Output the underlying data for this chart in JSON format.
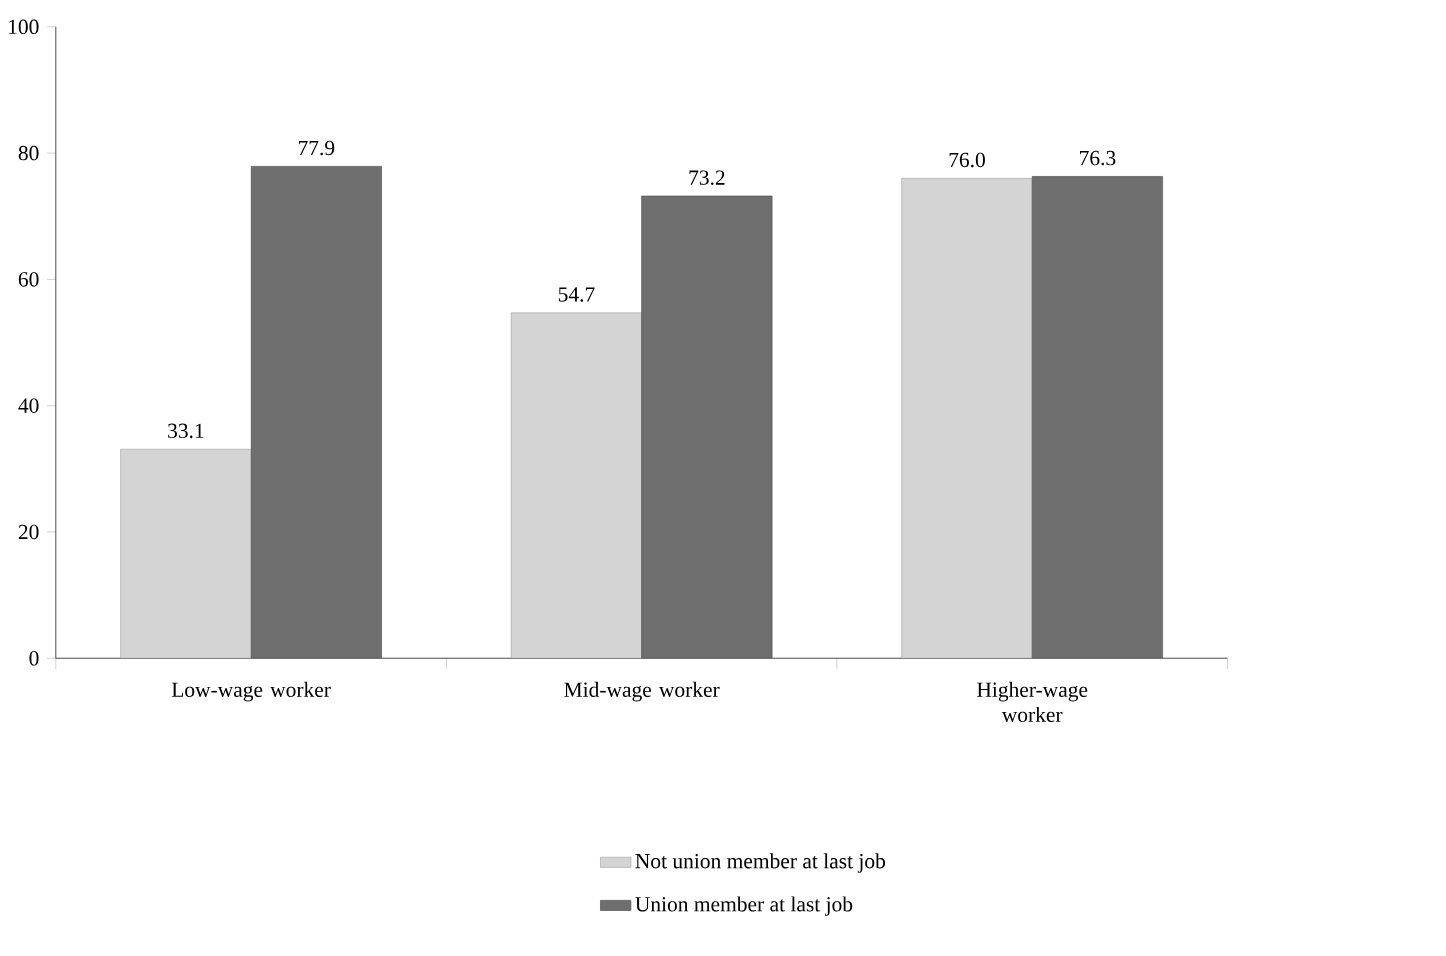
{
  "chart_data": {
    "type": "bar",
    "categories": [
      "Low-wage worker",
      "Mid-wage worker",
      "Higher-wage worker"
    ],
    "series": [
      {
        "name": "Not union member at last job",
        "color": "#d4d4d4",
        "values": [
          33.1,
          54.7,
          76.0
        ],
        "value_labels": [
          "33.1",
          "54.7",
          "76.0"
        ]
      },
      {
        "name": "Union member at last job",
        "color": "#6e6e6e",
        "values": [
          77.9,
          73.2,
          76.3
        ],
        "value_labels": [
          "77.9",
          "73.2",
          "76.3"
        ]
      }
    ],
    "ylim": [
      0,
      100
    ],
    "yticks": [
      0,
      20,
      40,
      60,
      80,
      100
    ],
    "grid": false,
    "legend": "bottom"
  }
}
